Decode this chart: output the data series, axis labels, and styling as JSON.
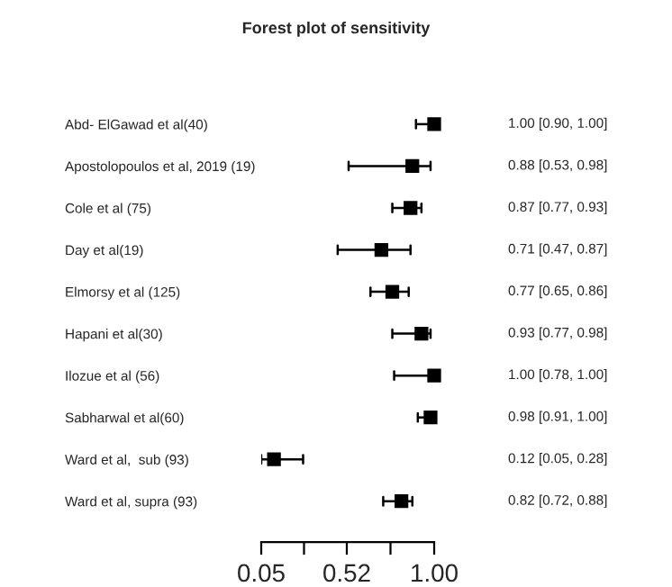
{
  "chart_data": {
    "type": "scatter",
    "title": "Forest plot of sensitivity",
    "orientation": "horizontal",
    "categories": [
      "Abd- ElGawad et al(40)",
      "Apostolopoulos et al, 2019 (19)",
      "Cole et al (75)",
      "Day et al(19)",
      "Elmorsy et al (125)",
      "Hapani et al(30)",
      "Ilozue et al (56)",
      "Sabharwal et al(60)",
      "Ward et al,  sub (93)",
      "Ward et al, supra (93)"
    ],
    "values": [
      1.0,
      0.88,
      0.87,
      0.71,
      0.77,
      0.93,
      1.0,
      0.98,
      0.12,
      0.82
    ],
    "errors": [
      [
        0.9,
        1.0
      ],
      [
        0.53,
        0.98
      ],
      [
        0.77,
        0.93
      ],
      [
        0.47,
        0.87
      ],
      [
        0.65,
        0.86
      ],
      [
        0.77,
        0.98
      ],
      [
        0.78,
        1.0
      ],
      [
        0.91,
        1.0
      ],
      [
        0.05,
        0.28
      ],
      [
        0.72,
        0.88
      ]
    ],
    "value_labels": [
      "1.00 [0.90, 1.00]",
      "0.88 [0.53, 0.98]",
      "0.87 [0.77, 0.93]",
      "0.71 [0.47, 0.87]",
      "0.77 [0.65, 0.86]",
      "0.93 [0.77, 0.98]",
      "1.00 [0.78, 1.00]",
      "0.98 [0.91, 1.00]",
      "0.12 [0.05, 0.28]",
      "0.82 [0.72, 0.88]"
    ],
    "color": "#000000",
    "marker": "square",
    "xlim": [
      0.05,
      1.0
    ],
    "xticks": [
      0.05,
      {
        "value": 0.285,
        "label": null
      },
      0.52,
      {
        "value": 0.76,
        "label": null
      },
      "1.00"
    ],
    "grid": false,
    "legend": false
  }
}
